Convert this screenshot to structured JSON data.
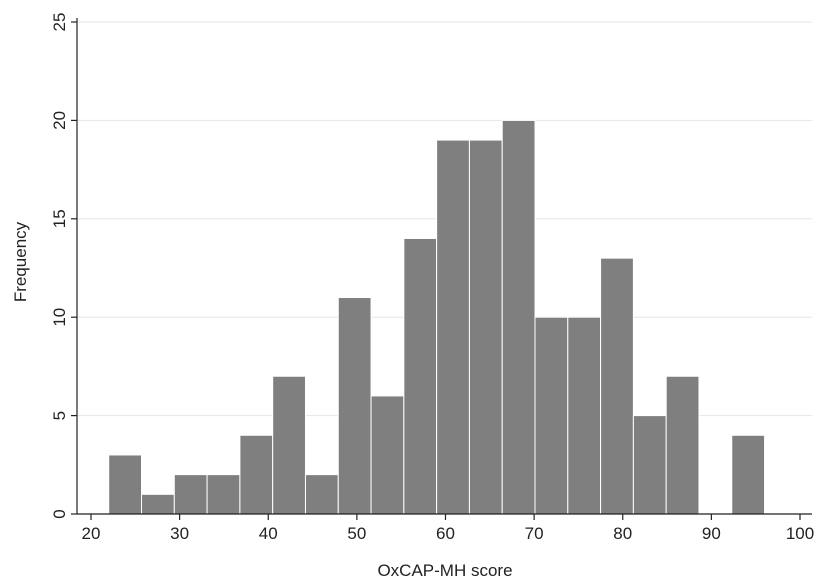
{
  "chart_data": {
    "type": "bar",
    "subtype": "histogram",
    "title": "",
    "xlabel": "OxCAP-MH score",
    "ylabel": "Frequency",
    "xlim": [
      20,
      100
    ],
    "ylim": [
      0,
      25
    ],
    "x_ticks": [
      20,
      30,
      40,
      50,
      60,
      70,
      80,
      90,
      100
    ],
    "y_ticks": [
      0,
      5,
      10,
      15,
      20,
      25
    ],
    "grid": true,
    "bar_color": "#7f7f7f",
    "bar_edge_color": "#ffffff",
    "bins": [
      {
        "start": 22.0,
        "end": 25.7,
        "count": 3
      },
      {
        "start": 25.7,
        "end": 29.4,
        "count": 1
      },
      {
        "start": 29.4,
        "end": 33.1,
        "count": 2
      },
      {
        "start": 33.1,
        "end": 36.8,
        "count": 2
      },
      {
        "start": 36.8,
        "end": 40.5,
        "count": 4
      },
      {
        "start": 40.5,
        "end": 44.2,
        "count": 7
      },
      {
        "start": 44.2,
        "end": 47.9,
        "count": 2
      },
      {
        "start": 47.9,
        "end": 51.6,
        "count": 11
      },
      {
        "start": 51.6,
        "end": 55.3,
        "count": 6
      },
      {
        "start": 55.3,
        "end": 59.0,
        "count": 14
      },
      {
        "start": 59.0,
        "end": 62.7,
        "count": 19
      },
      {
        "start": 62.7,
        "end": 66.4,
        "count": 19
      },
      {
        "start": 66.4,
        "end": 70.1,
        "count": 20
      },
      {
        "start": 70.1,
        "end": 73.8,
        "count": 10
      },
      {
        "start": 73.8,
        "end": 77.5,
        "count": 10
      },
      {
        "start": 77.5,
        "end": 81.2,
        "count": 13
      },
      {
        "start": 81.2,
        "end": 84.9,
        "count": 5
      },
      {
        "start": 84.9,
        "end": 88.6,
        "count": 7
      },
      {
        "start": 88.6,
        "end": 92.3,
        "count": 0
      },
      {
        "start": 92.3,
        "end": 96.0,
        "count": 4
      }
    ]
  }
}
